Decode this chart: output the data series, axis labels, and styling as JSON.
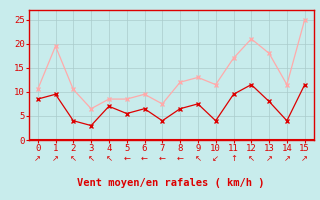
{
  "x": [
    0,
    1,
    2,
    3,
    4,
    5,
    6,
    7,
    8,
    9,
    10,
    11,
    12,
    13,
    14,
    15
  ],
  "avg_wind": [
    8.5,
    9.5,
    4.0,
    3.0,
    7.0,
    5.5,
    6.5,
    4.0,
    6.5,
    7.5,
    4.0,
    9.5,
    11.5,
    8.0,
    4.0,
    11.5
  ],
  "gust_wind": [
    10.5,
    19.5,
    10.5,
    6.5,
    8.5,
    8.5,
    9.5,
    7.5,
    12.0,
    13.0,
    11.5,
    17.0,
    21.0,
    18.0,
    11.5,
    25.0
  ],
  "avg_color": "#dd0000",
  "gust_color": "#ffaaaa",
  "bg_color": "#c8ecec",
  "grid_color": "#aacccc",
  "xlabel": "Vent moyen/en rafales ( km/h )",
  "xlabel_color": "#dd0000",
  "tick_color": "#dd0000",
  "ylim": [
    0,
    27
  ],
  "yticks": [
    0,
    5,
    10,
    15,
    20,
    25
  ],
  "spine_color": "#dd0000",
  "line_color": "#dd0000",
  "arrow_symbols": [
    "↗",
    "↗",
    "↖",
    "↖",
    "↖",
    "←",
    "←",
    "←",
    "←",
    "↖",
    "↙",
    "↑",
    "↖",
    "↗",
    "↗",
    "↗"
  ]
}
